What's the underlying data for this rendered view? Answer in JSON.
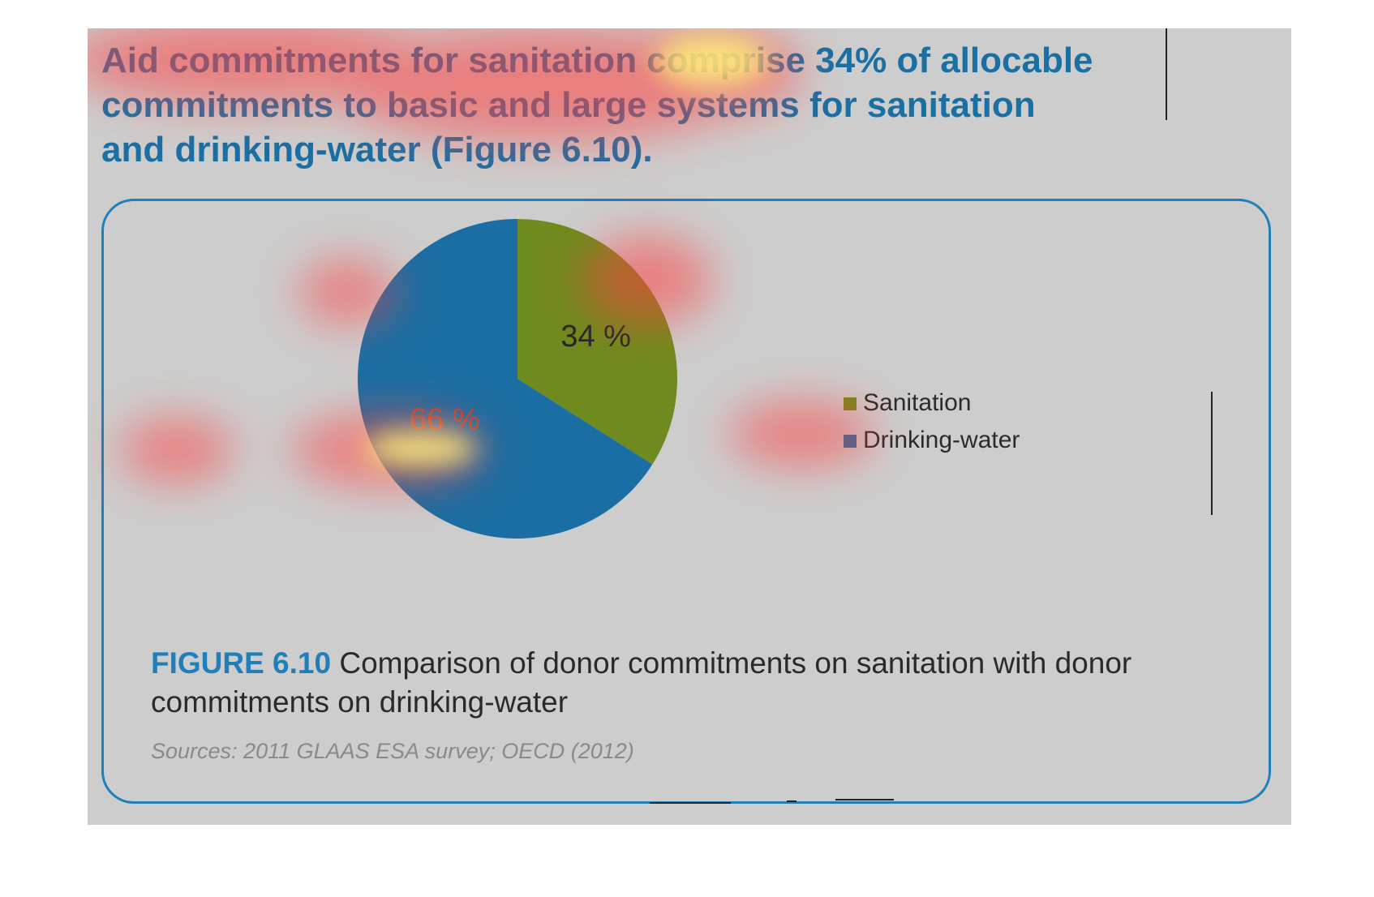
{
  "headline": {
    "prefix": "Aid commitments for sanitation comprise ",
    "highlight": "34% of allocable",
    "rest": "commitments to basic and large systems for sanitation and drinking-water (Figure 6.10)."
  },
  "chart_data": {
    "type": "pie",
    "slices": [
      {
        "name": "Sanitation",
        "value": 34,
        "label": "34 %",
        "color": "#6f8a1e"
      },
      {
        "name": "Drinking-water",
        "value": 66,
        "label": "66 %",
        "color": "#1a6ea3"
      }
    ],
    "legend": [
      "Sanitation",
      "Drinking-water"
    ],
    "legend_placement": "right"
  },
  "caption": {
    "label": "FIGURE 6.10",
    "text": "Comparison of donor commitments on sanitation with donor commitments on drinking-water"
  },
  "sources": "Sources: 2011 GLAAS ESA survey; OECD (2012)",
  "colors": {
    "accent": "#1f7fba",
    "page_background": "#cdcdcd",
    "heat_hot": "#fff27a",
    "heat_warm": "#ff4040"
  }
}
